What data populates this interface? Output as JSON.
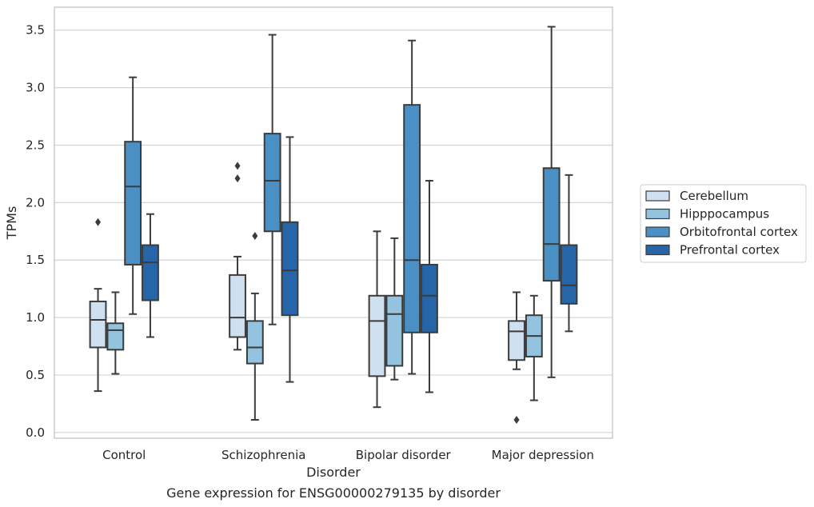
{
  "chart_data": {
    "type": "boxplot",
    "title": "",
    "caption": "Gene expression for ENSG00000279135 by disorder",
    "xlabel": "Disorder",
    "ylabel": "TPMs",
    "ylim": [
      -0.05,
      3.7
    ],
    "yticks": [
      "0.0",
      "0.5",
      "1.0",
      "1.5",
      "2.0",
      "2.5",
      "3.0",
      "3.5"
    ],
    "grid": "horizontal",
    "legend_position": "right",
    "categories": [
      "Control",
      "Schizophrenia",
      "Bipolar disorder",
      "Major depression"
    ],
    "series": [
      {
        "name": "Cerebellum",
        "color": "#cfe0f1",
        "boxes": [
          {
            "whisker_low": 0.36,
            "q1": 0.74,
            "median": 0.98,
            "q3": 1.14,
            "whisker_high": 1.25,
            "outliers": [
              1.83
            ]
          },
          {
            "whisker_low": 0.72,
            "q1": 0.83,
            "median": 1.0,
            "q3": 1.37,
            "whisker_high": 1.53,
            "outliers": [
              2.21,
              2.32
            ]
          },
          {
            "whisker_low": 0.22,
            "q1": 0.49,
            "median": 0.97,
            "q3": 1.19,
            "whisker_high": 1.75,
            "outliers": []
          },
          {
            "whisker_low": 0.55,
            "q1": 0.63,
            "median": 0.88,
            "q3": 0.97,
            "whisker_high": 1.22,
            "outliers": [
              0.11
            ]
          }
        ]
      },
      {
        "name": "Hipppocampus",
        "color": "#93c3df",
        "boxes": [
          {
            "whisker_low": 0.51,
            "q1": 0.72,
            "median": 0.89,
            "q3": 0.95,
            "whisker_high": 1.22,
            "outliers": []
          },
          {
            "whisker_low": 0.11,
            "q1": 0.6,
            "median": 0.74,
            "q3": 0.97,
            "whisker_high": 1.21,
            "outliers": [
              1.71
            ]
          },
          {
            "whisker_low": 0.46,
            "q1": 0.58,
            "median": 1.03,
            "q3": 1.19,
            "whisker_high": 1.69,
            "outliers": []
          },
          {
            "whisker_low": 0.28,
            "q1": 0.66,
            "median": 0.84,
            "q3": 1.02,
            "whisker_high": 1.19,
            "outliers": []
          }
        ]
      },
      {
        "name": "Orbitofrontal cortex",
        "color": "#4a90c4",
        "boxes": [
          {
            "whisker_low": 1.03,
            "q1": 1.46,
            "median": 2.14,
            "q3": 2.53,
            "whisker_high": 3.09,
            "outliers": []
          },
          {
            "whisker_low": 0.94,
            "q1": 1.75,
            "median": 2.19,
            "q3": 2.6,
            "whisker_high": 3.46,
            "outliers": []
          },
          {
            "whisker_low": 0.51,
            "q1": 0.87,
            "median": 1.5,
            "q3": 2.85,
            "whisker_high": 3.41,
            "outliers": []
          },
          {
            "whisker_low": 0.48,
            "q1": 1.32,
            "median": 1.64,
            "q3": 2.3,
            "whisker_high": 3.53,
            "outliers": []
          }
        ]
      },
      {
        "name": "Prefrontal cortex",
        "color": "#2565a8",
        "boxes": [
          {
            "whisker_low": 0.83,
            "q1": 1.15,
            "median": 1.48,
            "q3": 1.63,
            "whisker_high": 1.9,
            "outliers": []
          },
          {
            "whisker_low": 0.44,
            "q1": 1.02,
            "median": 1.41,
            "q3": 1.83,
            "whisker_high": 2.57,
            "outliers": []
          },
          {
            "whisker_low": 0.35,
            "q1": 0.87,
            "median": 1.19,
            "q3": 1.46,
            "whisker_high": 2.19,
            "outliers": []
          },
          {
            "whisker_low": 0.88,
            "q1": 1.12,
            "median": 1.28,
            "q3": 1.63,
            "whisker_high": 2.24,
            "outliers": []
          }
        ]
      }
    ]
  }
}
